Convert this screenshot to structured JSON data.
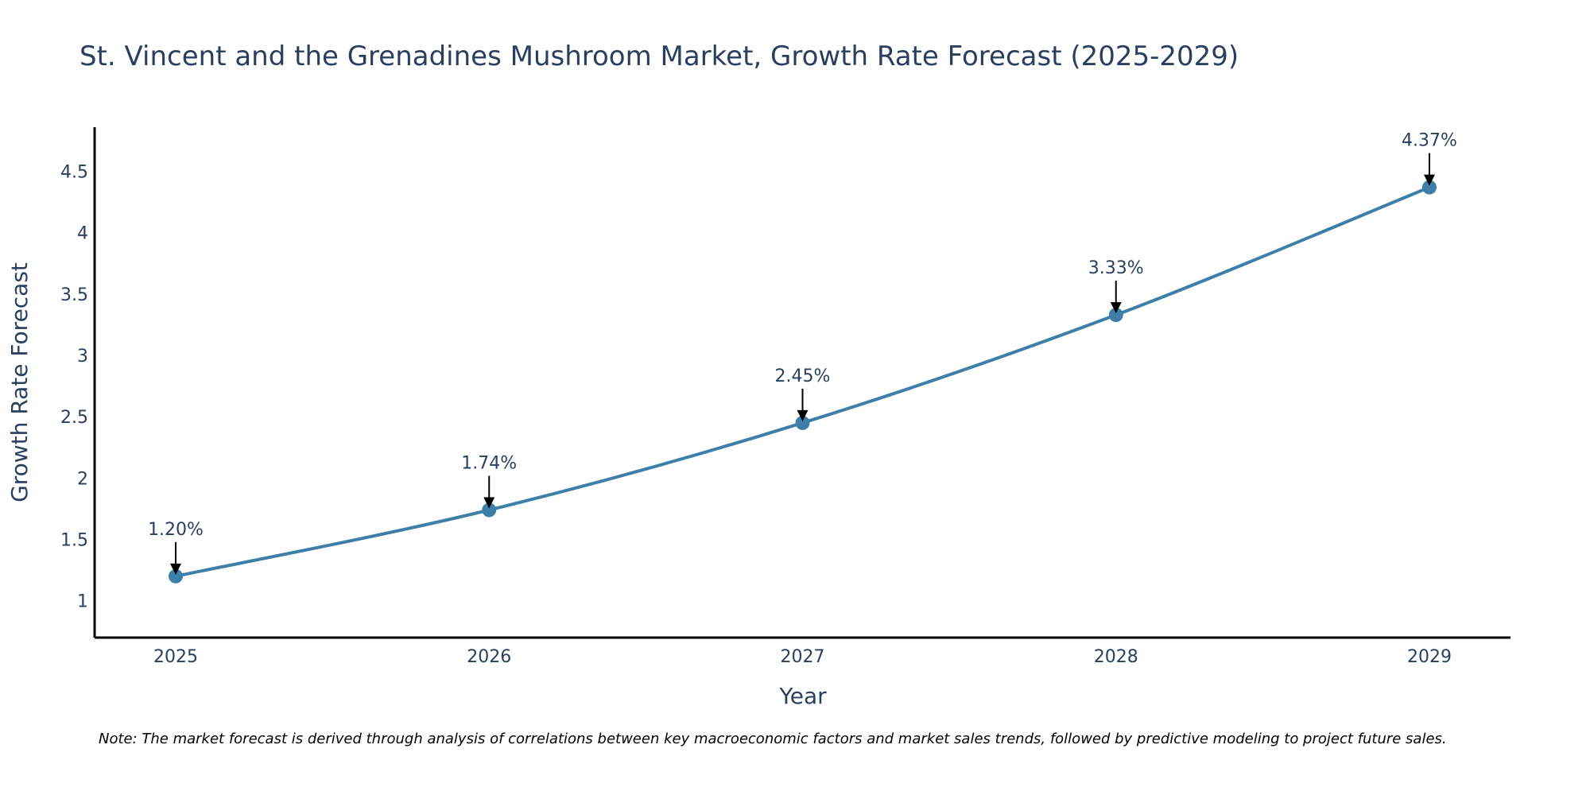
{
  "chart_data": {
    "type": "line",
    "title": "St. Vincent and the Grenadines Mushroom Market, Growth Rate Forecast (2025-2029)",
    "xlabel": "Year",
    "ylabel": "Growth Rate Forecast",
    "x": [
      "2025",
      "2026",
      "2027",
      "2028",
      "2029"
    ],
    "series": [
      {
        "name": "Growth Rate Forecast",
        "values": [
          1.2,
          1.74,
          2.45,
          3.33,
          4.37
        ],
        "labels": [
          "1.20%",
          "1.74%",
          "2.45%",
          "3.33%",
          "4.37%"
        ]
      }
    ],
    "ylim": [
      0.7,
      4.86
    ],
    "yticks": [
      1,
      1.5,
      2,
      2.5,
      3,
      3.5,
      4,
      4.5
    ],
    "ytick_labels": [
      "1",
      "1.5",
      "2",
      "2.5",
      "3",
      "3.5",
      "4",
      "4.5"
    ],
    "grid": false,
    "colors": {
      "line": "#3d7fa8",
      "marker": "#3d7fa8",
      "axis": "#000000",
      "text": "#2a3f5f"
    }
  },
  "note": "Note: The market forecast is derived through analysis of correlations between key macroeconomic factors and market sales trends, followed by predictive modeling to project future sales."
}
